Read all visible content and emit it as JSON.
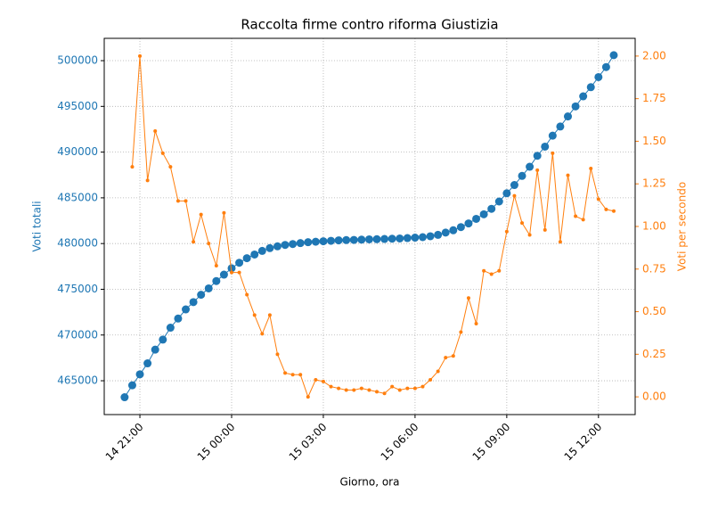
{
  "chart_data": {
    "type": "line",
    "title": "Raccolta firme contro riforma Giustizia",
    "x_label": "Giorno, ora",
    "y_label": "Voti totali",
    "y2_label": "Voti per secondo",
    "x": [
      "14 20:30",
      "14 20:45",
      "14 21:00",
      "14 21:15",
      "14 21:30",
      "14 21:45",
      "14 22:00",
      "14 22:15",
      "14 22:30",
      "14 22:45",
      "14 23:00",
      "14 23:15",
      "14 23:30",
      "14 23:45",
      "15 00:00",
      "15 00:15",
      "15 00:30",
      "15 00:45",
      "15 01:00",
      "15 01:15",
      "15 01:30",
      "15 01:45",
      "15 02:00",
      "15 02:15",
      "15 02:30",
      "15 02:45",
      "15 03:00",
      "15 03:15",
      "15 03:30",
      "15 03:45",
      "15 04:00",
      "15 04:15",
      "15 04:30",
      "15 04:45",
      "15 05:00",
      "15 05:15",
      "15 05:30",
      "15 05:45",
      "15 06:00",
      "15 06:15",
      "15 06:30",
      "15 06:45",
      "15 07:00",
      "15 07:15",
      "15 07:30",
      "15 07:45",
      "15 08:00",
      "15 08:15",
      "15 08:30",
      "15 08:45",
      "15 09:00",
      "15 09:15",
      "15 09:30",
      "15 09:45",
      "15 10:00",
      "15 10:15",
      "15 10:30",
      "15 10:45",
      "15 11:00",
      "15 11:15",
      "15 11:30",
      "15 11:45",
      "15 12:00",
      "15 12:15",
      "15 12:30"
    ],
    "series": [
      {
        "name": "Voti totali",
        "color": "#1f77b4",
        "axis": "y",
        "marker_size": 4.5,
        "line_width": 1,
        "values": [
          463200,
          464500,
          465700,
          466900,
          468400,
          469500,
          470800,
          471800,
          472800,
          473600,
          474400,
          475100,
          475900,
          476600,
          477300,
          477900,
          478400,
          478800,
          479200,
          479500,
          479700,
          479850,
          479950,
          480050,
          480150,
          480200,
          480250,
          480300,
          480350,
          480380,
          480400,
          480430,
          480460,
          480480,
          480500,
          480530,
          480560,
          480600,
          480650,
          480700,
          480800,
          480950,
          481200,
          481450,
          481800,
          482200,
          482700,
          483200,
          483800,
          484600,
          485500,
          486400,
          487400,
          488400,
          489600,
          490600,
          491800,
          492800,
          493900,
          495000,
          496100,
          497100,
          498200,
          499300,
          500600
        ]
      },
      {
        "name": "Voti per secondo",
        "color": "#ff7f0e",
        "axis": "y2",
        "marker_size": 2,
        "line_width": 1,
        "values": [
          null,
          1.35,
          2.0,
          1.27,
          1.56,
          1.43,
          1.35,
          1.15,
          1.15,
          0.91,
          1.07,
          0.9,
          0.77,
          1.08,
          0.73,
          0.73,
          0.6,
          0.48,
          0.37,
          0.48,
          0.25,
          0.14,
          0.13,
          0.13,
          0.0,
          0.1,
          0.09,
          0.06,
          0.05,
          0.04,
          0.04,
          0.05,
          0.04,
          0.03,
          0.02,
          0.06,
          0.04,
          0.05,
          0.05,
          0.06,
          0.1,
          0.15,
          0.23,
          0.24,
          0.38,
          0.58,
          0.43,
          0.74,
          0.72,
          0.74,
          0.97,
          1.18,
          1.02,
          0.95,
          1.33,
          0.98,
          1.43,
          0.91,
          1.3,
          1.06,
          1.04,
          1.34,
          1.16,
          1.1,
          1.09
        ]
      }
    ],
    "xlim": [
      "14 19:50",
      "15 13:12"
    ],
    "xticks": [
      "14 21:00",
      "15 00:00",
      "15 03:00",
      "15 06:00",
      "15 09:00",
      "15 12:00"
    ],
    "ylim": [
      461300,
      502440
    ],
    "yticks": [
      465000,
      470000,
      475000,
      480000,
      485000,
      490000,
      495000,
      500000
    ],
    "y2lim": [
      -0.104,
      2.104
    ],
    "y2ticks": [
      {
        "value": 0,
        "label": "0.00"
      },
      {
        "value": 0.25,
        "label": "0.25"
      },
      {
        "value": 0.5,
        "label": "0.50"
      },
      {
        "value": 0.75,
        "label": "0.75"
      },
      {
        "value": 1,
        "label": "1.00"
      },
      {
        "value": 1.25,
        "label": "1.25"
      },
      {
        "value": 1.5,
        "label": "1.50"
      },
      {
        "value": 1.75,
        "label": "1.75"
      },
      {
        "value": 2,
        "label": "2.00"
      }
    ],
    "grid": true
  }
}
